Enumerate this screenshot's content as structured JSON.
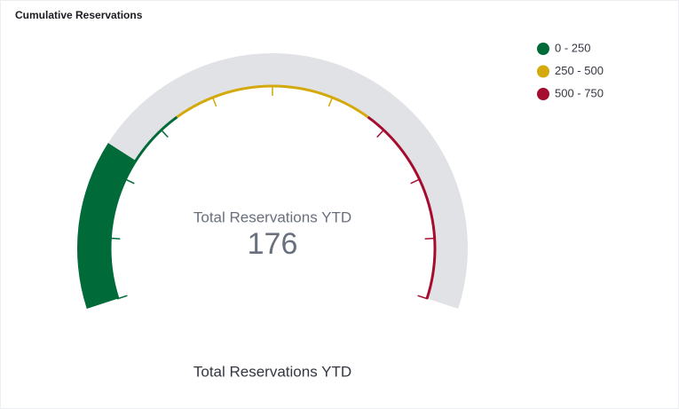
{
  "chart_data": {
    "type": "gauge",
    "title": "Cumulative Reservations",
    "label": "Total Reservations YTD",
    "value": 176,
    "footer": "Total Reservations YTD",
    "ylim": [
      0,
      750
    ],
    "yticks": [
      0,
      75,
      150,
      225,
      300,
      375,
      450,
      525,
      600,
      675,
      750
    ],
    "color": "#006b38",
    "track_color": "#e1e2e6",
    "bands": [
      {
        "from": 0,
        "to": 250,
        "color": "#006b38",
        "label": "0 - 250"
      },
      {
        "from": 250,
        "to": 500,
        "color": "#d3a90c",
        "label": "250 - 500"
      },
      {
        "from": 500,
        "to": 750,
        "color": "#a50d2e",
        "label": "500 - 750"
      }
    ]
  }
}
